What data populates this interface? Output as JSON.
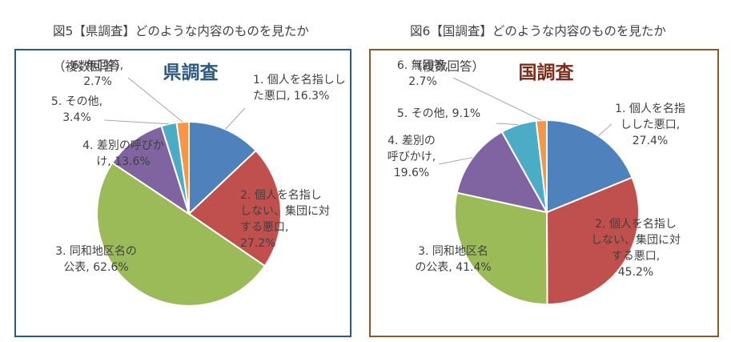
{
  "figures": [
    {
      "title_line1": "図5【県調査】どのような内容のものを見たか",
      "title_line2": "（複数回答）"
    },
    {
      "title_line1": "図6【国調査】どのような内容のものを見たか",
      "title_line2": "（複数回答）"
    }
  ],
  "chart_data": [
    {
      "type": "pie",
      "title": "県調査",
      "categories": [
        "1. 個人を名指しした悪口",
        "2. 個人を名指ししない、集団に対する悪口",
        "3. 同和地区名の公表",
        "4. 差別の呼びかけ",
        "5. その他",
        "6. 無回答"
      ],
      "values": [
        16.3,
        27.2,
        62.6,
        13.6,
        3.4,
        2.7
      ],
      "labels": [
        [
          "1. 個人を名指しし",
          "た悪口, 16.3%"
        ],
        [
          "2. 個人を名指し",
          "しない、集団に対",
          "する悪口,",
          "27.2%"
        ],
        [
          "3. 同和地区名の",
          "公表, 62.6%"
        ],
        [
          "4. 差別の呼びか",
          "け, 13.6%"
        ],
        [
          "5. その他,",
          "3.4%"
        ],
        [
          "6. 無回答,",
          "2.7%"
        ]
      ],
      "colors": [
        "#4f81bd",
        "#c0504d",
        "#9bbb59",
        "#8064a2",
        "#4bacc6",
        "#f79646"
      ],
      "title_color": "#2e5a80"
    },
    {
      "type": "pie",
      "title": "国調査",
      "categories": [
        "1. 個人を名指しした悪口",
        "2. 個人を名指ししない、集団に対する悪口",
        "3. 同和地区名の公表",
        "4. 差別の呼びかけ",
        "5. その他",
        "6. 無回答"
      ],
      "values": [
        27.4,
        45.2,
        41.4,
        19.6,
        9.1,
        2.7
      ],
      "labels": [
        [
          "1. 個人を名指",
          "しした悪口,",
          "27.4%"
        ],
        [
          "2. 個人を名指し",
          "しない、集団に対",
          "する悪口,",
          "45.2%"
        ],
        [
          "3. 同和地区名",
          "の公表, 41.4%"
        ],
        [
          "4. 差別の",
          "呼びかけ,",
          "19.6%"
        ],
        [
          "5. その他, 9.1%"
        ],
        [
          "6. 無回答,",
          "2.7%"
        ]
      ],
      "colors": [
        "#4f81bd",
        "#c0504d",
        "#9bbb59",
        "#8064a2",
        "#4bacc6",
        "#f79646"
      ],
      "title_color": "#7b2e1c"
    }
  ]
}
